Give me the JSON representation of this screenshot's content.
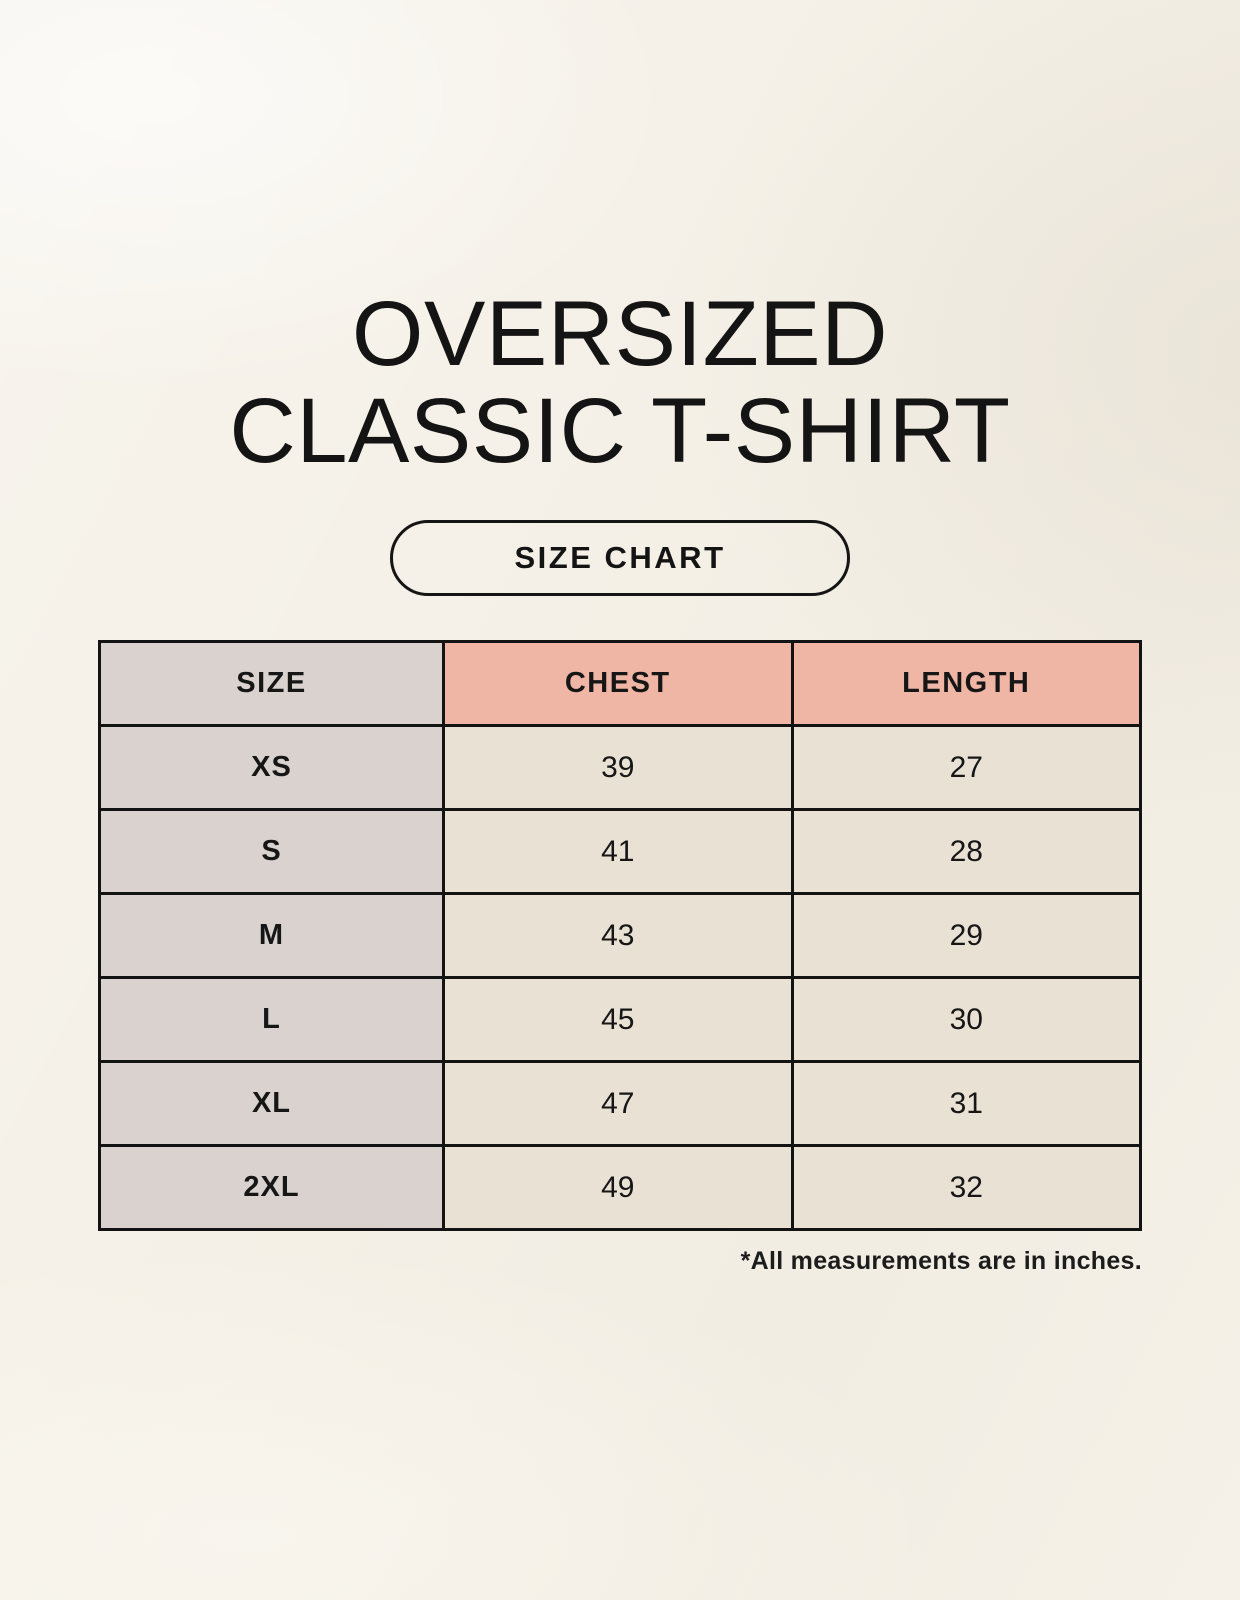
{
  "header": {
    "title_line1": "OVERSIZED",
    "title_line2": "CLASSIC T-SHIRT",
    "badge_label": "SIZE CHART"
  },
  "chart_data": {
    "type": "table",
    "title": "OVERSIZED CLASSIC T-SHIRT",
    "columns": [
      "SIZE",
      "CHEST",
      "LENGTH"
    ],
    "rows": [
      {
        "size": "XS",
        "chest": "39",
        "length": "27"
      },
      {
        "size": "S",
        "chest": "41",
        "length": "28"
      },
      {
        "size": "M",
        "chest": "43",
        "length": "29"
      },
      {
        "size": "L",
        "chest": "45",
        "length": "30"
      },
      {
        "size": "XL",
        "chest": "47",
        "length": "31"
      },
      {
        "size": "2XL",
        "chest": "49",
        "length": "32"
      }
    ],
    "units_note": "*All measurements are in inches."
  },
  "colors": {
    "background": "#f5f1e8",
    "size_column_fill": "#d9d2ce",
    "header_accent_fill": "#efb5a5",
    "data_cell_fill": "#e8e1d4",
    "border": "#131313",
    "text": "#141414"
  }
}
